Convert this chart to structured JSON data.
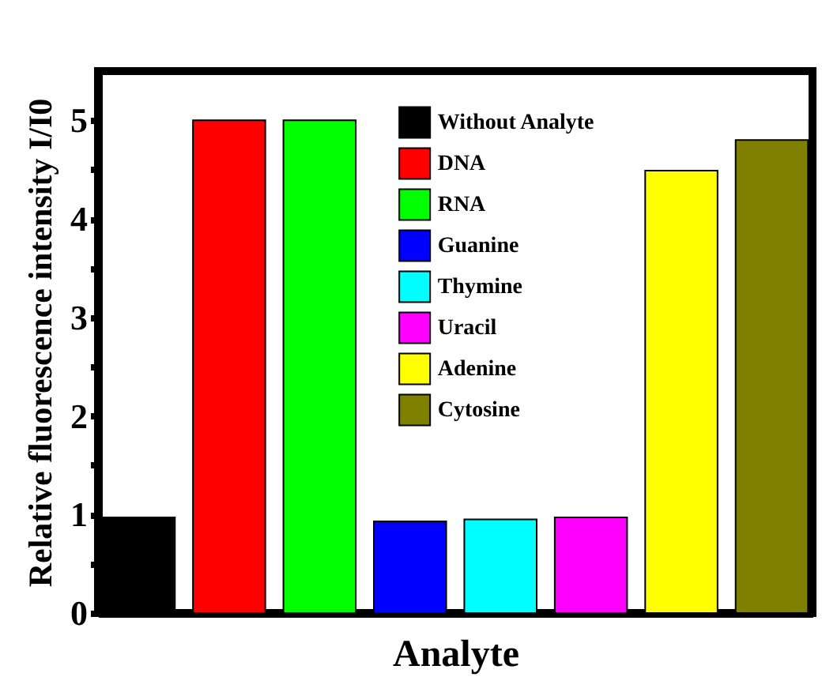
{
  "chart_data": {
    "type": "bar",
    "xlabel": "Analyte",
    "ylabel": "Relative fluorescence intensity I/I0",
    "categories": [
      null,
      null,
      null,
      null,
      null,
      null,
      null,
      null
    ],
    "series": [
      {
        "name": "Without Analyte",
        "color": "#000000",
        "values": [
          0.97,
          null,
          null,
          null,
          null,
          null,
          null,
          null
        ]
      },
      {
        "name": "DNA",
        "color": "#ff0000",
        "values": [
          null,
          5.0,
          null,
          null,
          null,
          null,
          null,
          null
        ]
      },
      {
        "name": "RNA",
        "color": "#00ff00",
        "values": [
          null,
          null,
          5.0,
          null,
          null,
          null,
          null,
          null
        ]
      },
      {
        "name": "Guanine",
        "color": "#0000ff",
        "values": [
          null,
          null,
          null,
          0.93,
          null,
          null,
          null,
          null
        ]
      },
      {
        "name": "Thymine",
        "color": "#00ffff",
        "values": [
          null,
          null,
          null,
          null,
          0.95,
          null,
          null,
          null
        ]
      },
      {
        "name": "Uracil",
        "color": "#ff00ff",
        "values": [
          null,
          null,
          null,
          null,
          null,
          0.97,
          null,
          null
        ]
      },
      {
        "name": "Adenine",
        "color": "#ffff00",
        "values": [
          null,
          null,
          null,
          null,
          null,
          null,
          4.49,
          null
        ]
      },
      {
        "name": "Cytosine",
        "color": "#808000",
        "values": [
          null,
          null,
          null,
          null,
          null,
          null,
          null,
          4.8
        ]
      }
    ],
    "ylim": [
      0,
      5.5
    ],
    "yticks": [
      0,
      {
        "value": 0.5,
        "label": null
      },
      1,
      {
        "value": 1.5,
        "label": null
      },
      2,
      {
        "value": 2.5,
        "label": null
      },
      3,
      {
        "value": 3.5,
        "label": null
      },
      4,
      {
        "value": 4.5,
        "label": null
      },
      5
    ],
    "legend": "top",
    "tick_labels": "y"
  }
}
